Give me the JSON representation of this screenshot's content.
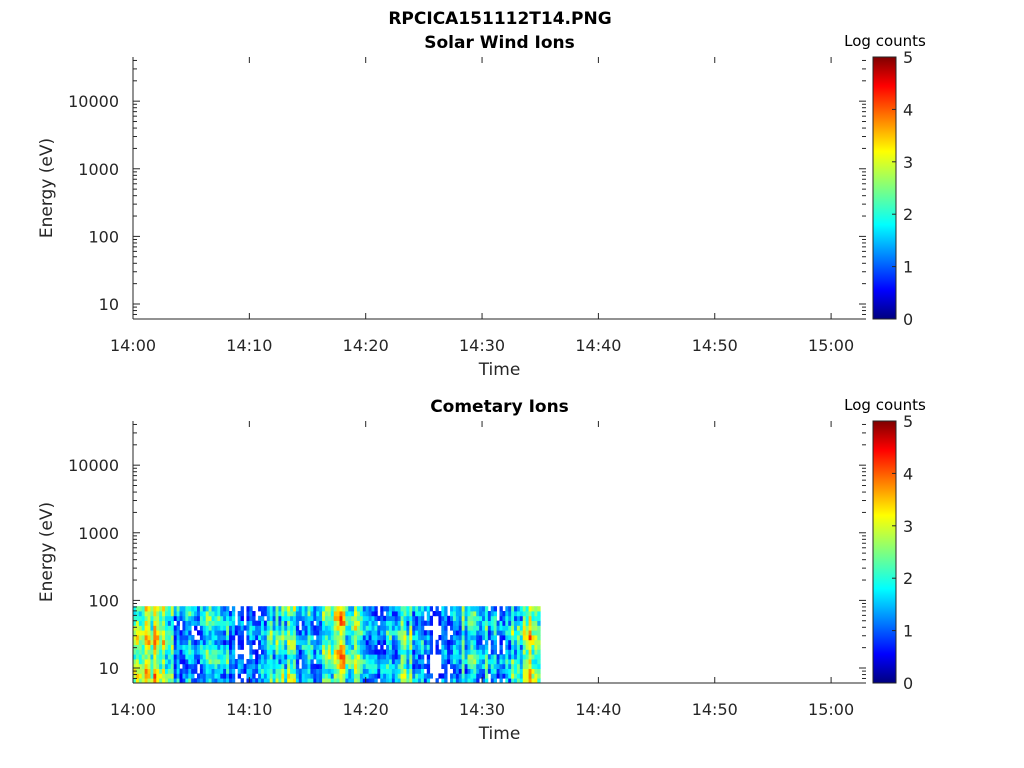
{
  "figure": {
    "title": "RPCICA151112T14.PNG"
  },
  "colors": {
    "axis": "#262626",
    "colormap": [
      "#00007f",
      "#0000ff",
      "#007fff",
      "#00ffff",
      "#7fff7f",
      "#ffff00",
      "#ff7f00",
      "#ff0000",
      "#7f0000"
    ]
  },
  "chart_data": [
    {
      "type": "heatmap",
      "title": "Solar Wind Ions",
      "xlabel": "Time",
      "ylabel": "Energy (eV)",
      "xticks": [
        "14:00",
        "14:10",
        "14:20",
        "14:30",
        "14:40",
        "14:50",
        "15:00"
      ],
      "xlim": [
        "14:00",
        "15:03"
      ],
      "yscale": "log",
      "yticks": [
        "10",
        "100",
        "1000",
        "10000"
      ],
      "ylim": [
        6,
        45000
      ],
      "colorbar": {
        "label": "Log counts",
        "range": [
          0,
          5
        ],
        "ticks": [
          "0",
          "1",
          "2",
          "3",
          "4",
          "5"
        ],
        "colormap": "jet"
      },
      "data_extent": null
    },
    {
      "type": "heatmap",
      "title": "Cometary Ions",
      "xlabel": "Time",
      "ylabel": "Energy (eV)",
      "xticks": [
        "14:00",
        "14:10",
        "14:20",
        "14:30",
        "14:40",
        "14:50",
        "15:00"
      ],
      "xlim": [
        "14:00",
        "15:03"
      ],
      "yscale": "log",
      "yticks": [
        "10",
        "100",
        "1000",
        "10000"
      ],
      "ylim": [
        6,
        45000
      ],
      "colorbar": {
        "label": "Log counts",
        "range": [
          0,
          5
        ],
        "ticks": [
          "0",
          "1",
          "2",
          "3",
          "4",
          "5"
        ],
        "colormap": "jet"
      },
      "data_extent": {
        "time_start": "14:00",
        "time_end": "14:35",
        "energy_min": 6,
        "energy_max": 82
      },
      "approx_log_count_range": [
        0,
        4
      ]
    }
  ]
}
